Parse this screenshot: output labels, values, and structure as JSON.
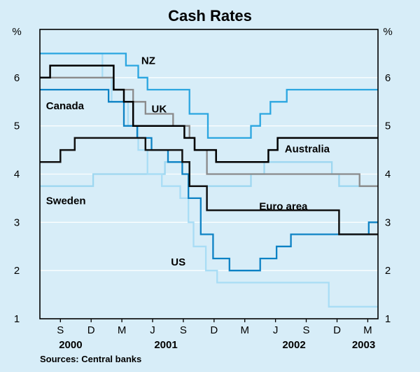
{
  "chart_data": {
    "type": "line",
    "title": "Cash Rates",
    "unit_left": "%",
    "unit_right": "%",
    "source": "Sources: Central banks",
    "background": "#d7edf8",
    "grid_color": "#ffffff",
    "frame_color": "#000000",
    "ylim": [
      1,
      7
    ],
    "yticks": [
      1,
      2,
      3,
      4,
      5,
      6
    ],
    "xlim": [
      0,
      33
    ],
    "xticks": [
      {
        "pos": 2,
        "label": "S"
      },
      {
        "pos": 5,
        "label": "D"
      },
      {
        "pos": 8,
        "label": "M"
      },
      {
        "pos": 11,
        "label": "J"
      },
      {
        "pos": 14,
        "label": "S"
      },
      {
        "pos": 17,
        "label": "D"
      },
      {
        "pos": 20,
        "label": "M"
      },
      {
        "pos": 23,
        "label": "J"
      },
      {
        "pos": 26,
        "label": "S"
      },
      {
        "pos": 29,
        "label": "D"
      },
      {
        "pos": 32,
        "label": "M"
      }
    ],
    "year_labels": [
      {
        "pos": 3.0,
        "label": "2000"
      },
      {
        "pos": 12.3,
        "label": "2001"
      },
      {
        "pos": 24.8,
        "label": "2002"
      },
      {
        "pos": 31.6,
        "label": "2003"
      }
    ],
    "series": [
      {
        "name": "Sweden",
        "color": "#9ed7f0",
        "width": 2.3,
        "points": [
          [
            0,
            3.75
          ],
          [
            5.2,
            4.0
          ],
          [
            12.2,
            4.25
          ],
          [
            14.6,
            3.75
          ],
          [
            20.6,
            4.0
          ],
          [
            21.9,
            4.25
          ],
          [
            28.5,
            4.0
          ],
          [
            29.2,
            3.75
          ]
        ]
      },
      {
        "name": "US",
        "color": "#a9ddf5",
        "width": 2.3,
        "points": [
          [
            0,
            6.5
          ],
          [
            6.1,
            6.0
          ],
          [
            7.0,
            5.5
          ],
          [
            8.6,
            5.0
          ],
          [
            9.6,
            4.5
          ],
          [
            10.5,
            4.0
          ],
          [
            11.9,
            3.75
          ],
          [
            13.7,
            3.5
          ],
          [
            14.5,
            3.0
          ],
          [
            15.0,
            2.5
          ],
          [
            16.2,
            2.0
          ],
          [
            17.3,
            1.75
          ],
          [
            28.2,
            1.25
          ]
        ]
      },
      {
        "name": "UK",
        "color": "#8a8a8a",
        "width": 2.3,
        "points": [
          [
            0,
            6.0
          ],
          [
            7.2,
            5.75
          ],
          [
            9.1,
            5.5
          ],
          [
            10.3,
            5.25
          ],
          [
            13.0,
            5.0
          ],
          [
            14.6,
            4.75
          ],
          [
            15.1,
            4.5
          ],
          [
            16.3,
            4.0
          ],
          [
            31.2,
            3.75
          ]
        ]
      },
      {
        "name": "Canada",
        "color": "#0d82c4",
        "width": 2.3,
        "points": [
          [
            0,
            5.75
          ],
          [
            6.7,
            5.5
          ],
          [
            8.2,
            5.0
          ],
          [
            9.5,
            4.75
          ],
          [
            10.9,
            4.5
          ],
          [
            12.5,
            4.25
          ],
          [
            13.9,
            4.0
          ],
          [
            14.5,
            3.5
          ],
          [
            15.7,
            2.75
          ],
          [
            16.9,
            2.25
          ],
          [
            18.5,
            2.0
          ],
          [
            21.5,
            2.25
          ],
          [
            23.1,
            2.5
          ],
          [
            24.5,
            2.75
          ],
          [
            32.1,
            3.0
          ]
        ]
      },
      {
        "name": "NZ",
        "color": "#2ba6e0",
        "width": 2.3,
        "points": [
          [
            0,
            6.5
          ],
          [
            8.4,
            6.25
          ],
          [
            9.6,
            6.0
          ],
          [
            10.5,
            5.75
          ],
          [
            14.6,
            5.25
          ],
          [
            16.4,
            4.75
          ],
          [
            20.6,
            5.0
          ],
          [
            21.5,
            5.25
          ],
          [
            22.5,
            5.5
          ],
          [
            24.1,
            5.75
          ]
        ]
      },
      {
        "name": "Euro area",
        "color": "#111111",
        "width": 2.5,
        "points": [
          [
            0,
            4.25
          ],
          [
            2.0,
            4.5
          ],
          [
            3.4,
            4.75
          ],
          [
            10.3,
            4.5
          ],
          [
            13.9,
            4.25
          ],
          [
            14.6,
            3.75
          ],
          [
            16.3,
            3.25
          ],
          [
            29.2,
            2.75
          ]
        ]
      },
      {
        "name": "Australia",
        "color": "#000000",
        "width": 2.5,
        "points": [
          [
            0,
            6.0
          ],
          [
            1.0,
            6.25
          ],
          [
            7.2,
            5.75
          ],
          [
            8.2,
            5.5
          ],
          [
            9.1,
            5.0
          ],
          [
            14.1,
            4.75
          ],
          [
            15.1,
            4.5
          ],
          [
            17.2,
            4.25
          ],
          [
            22.3,
            4.5
          ],
          [
            23.2,
            4.75
          ]
        ]
      }
    ],
    "annotations": [
      {
        "text": "NZ",
        "x": 9.9,
        "y": 6.35
      },
      {
        "text": "Canada",
        "x": 0.6,
        "y": 5.42
      },
      {
        "text": "UK",
        "x": 10.9,
        "y": 5.35
      },
      {
        "text": "Australia",
        "x": 23.9,
        "y": 4.52
      },
      {
        "text": "Sweden",
        "x": 0.6,
        "y": 3.45
      },
      {
        "text": "Euro area",
        "x": 21.4,
        "y": 3.33
      },
      {
        "text": "US",
        "x": 12.8,
        "y": 2.18
      }
    ]
  }
}
